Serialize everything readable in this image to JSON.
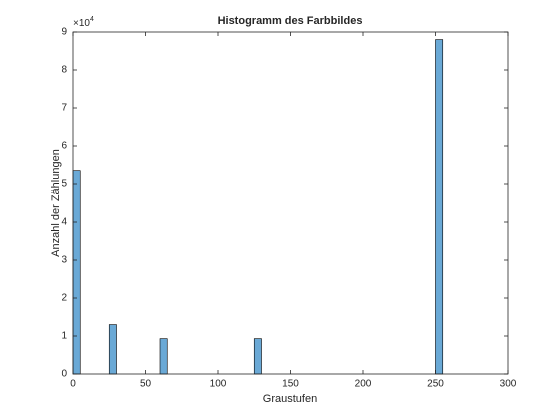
{
  "chart_data": {
    "type": "histogram",
    "title": "Histogramm des Farbbildes",
    "x_label": "Graustufen",
    "y_label": "Anzahl der Zählungen",
    "y_multiplier": {
      "base": "×10",
      "exponent": "4"
    },
    "bins": [
      0,
      5,
      10,
      15,
      20,
      25,
      30,
      35,
      40,
      45,
      50,
      55,
      60,
      65,
      70,
      75,
      80,
      85,
      90,
      95,
      100,
      105,
      110,
      115,
      120,
      125,
      130,
      135,
      140,
      145,
      150,
      155,
      160,
      165,
      170,
      175,
      180,
      185,
      190,
      195,
      200,
      205,
      210,
      215,
      220,
      225,
      230,
      235,
      240,
      245,
      250,
      255
    ],
    "values": [
      5.35,
      0,
      0,
      0,
      0,
      1.3,
      0,
      0,
      0,
      0,
      0,
      0,
      0.93,
      0,
      0,
      0,
      0,
      0,
      0,
      0,
      0,
      0,
      0,
      0,
      0,
      0.93,
      0,
      0,
      0,
      0,
      0,
      0,
      0,
      0,
      0,
      0,
      0,
      0,
      0,
      0,
      0,
      0,
      0,
      0,
      0,
      0,
      0,
      0,
      0,
      0,
      8.8
    ],
    "color": "#6aa9d6",
    "edge_color": "#000000",
    "xlim": [
      0,
      300
    ],
    "xticks": [
      0,
      50,
      100,
      150,
      200,
      250,
      300
    ],
    "ylim": [
      0,
      9
    ],
    "yticks": [
      0,
      1,
      2,
      3,
      4,
      5,
      6,
      7,
      8,
      9
    ]
  }
}
